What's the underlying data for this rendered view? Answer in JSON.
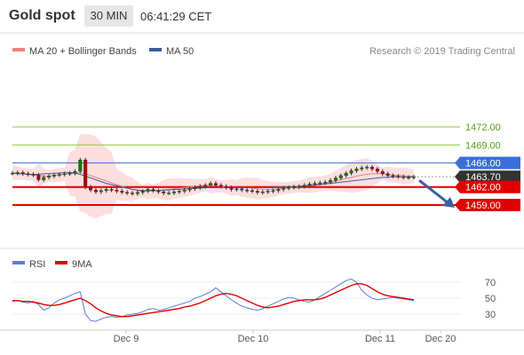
{
  "header": {
    "title": "Gold spot",
    "timeframe": "30 MIN",
    "time": "06:41:29 CET"
  },
  "colors": {
    "ma20": "#f08080",
    "bollinger_fill": "#fcd8d8",
    "ma50": "#3a5f9c",
    "green_level": "#8cc63f",
    "blue_level": "#3a6fd8",
    "red_level": "#e00000",
    "current_price_box": "#333333",
    "candle": "#008000",
    "rsi": "#5b7ed6",
    "rsi_ma": "#e00000"
  },
  "legend": {
    "ma20_label": "MA 20 + Bollinger Bands",
    "ma50_label": "MA 50",
    "rsi_label": "RSI",
    "rsi_ma_label": "9MA"
  },
  "watermark": "Research © 2019 Trading Central",
  "chart_data": [
    {
      "type": "candlestick",
      "title": "Gold spot",
      "x_ticks": [
        "Dec 9",
        "Dec 10",
        "Dec 11",
        "Dec 20"
      ],
      "price_levels": [
        {
          "value": "1472.00",
          "kind": "resistance",
          "color": "green"
        },
        {
          "value": "1469.00",
          "kind": "resistance",
          "color": "green"
        },
        {
          "value": "1466.00",
          "kind": "pivot",
          "color": "blue"
        },
        {
          "value": "1463.70",
          "kind": "current",
          "color": "dark"
        },
        {
          "value": "1462.00",
          "kind": "support",
          "color": "red"
        },
        {
          "value": "1459.00",
          "kind": "support",
          "color": "red"
        }
      ],
      "forecast": "down",
      "close_series": [
        1464.3,
        1464.4,
        1464.2,
        1464.1,
        1464.0,
        1463.2,
        1463.6,
        1463.8,
        1464.0,
        1464.1,
        1464.2,
        1464.3,
        1464.6,
        1466.5,
        1462.0,
        1461.5,
        1461.2,
        1461.4,
        1461.6,
        1461.5,
        1461.3,
        1461.1,
        1461.0,
        1460.9,
        1461.1,
        1461.3,
        1461.6,
        1461.4,
        1461.2,
        1461.0,
        1461.0,
        1461.2,
        1461.3,
        1461.5,
        1461.7,
        1461.9,
        1462.1,
        1462.3,
        1462.6,
        1462.3,
        1462.1,
        1461.9,
        1461.6,
        1461.7,
        1461.5,
        1461.4,
        1461.3,
        1461.1,
        1461.2,
        1461.3,
        1461.4,
        1461.6,
        1461.8,
        1461.9,
        1462.0,
        1462.1,
        1462.3,
        1462.5,
        1462.6,
        1462.7,
        1462.8,
        1463.1,
        1463.5,
        1463.9,
        1464.3,
        1464.7,
        1465.0,
        1465.2,
        1465.3,
        1465.0,
        1464.6,
        1464.2,
        1463.9,
        1463.8,
        1463.7,
        1463.6,
        1463.6,
        1463.7
      ],
      "ma20_series": [
        1464.4,
        1464.3,
        1464.2,
        1464.1,
        1464.0,
        1463.9,
        1463.8,
        1463.8,
        1463.9,
        1464.0,
        1464.1,
        1464.2,
        1464.3,
        1464.4,
        1464.2,
        1463.9,
        1463.6,
        1463.3,
        1463.0,
        1462.7,
        1462.4,
        1462.1,
        1461.8,
        1461.6,
        1461.4,
        1461.3,
        1461.3,
        1461.3,
        1461.4,
        1461.5,
        1461.6,
        1461.7,
        1461.8,
        1461.9,
        1462.0,
        1462.1,
        1462.2,
        1462.3,
        1462.3,
        1462.2,
        1462.1,
        1462.0,
        1461.9,
        1461.9,
        1461.9,
        1461.9,
        1461.8,
        1461.7,
        1461.6,
        1461.6,
        1461.6,
        1461.7,
        1461.8,
        1461.9,
        1462.0,
        1462.1,
        1462.2,
        1462.3,
        1462.4,
        1462.5,
        1462.6,
        1462.8,
        1463.0,
        1463.2,
        1463.4,
        1463.6,
        1463.8,
        1464.0,
        1464.1,
        1464.2,
        1464.2,
        1464.2,
        1464.1,
        1464.0,
        1463.9,
        1463.9,
        1463.8,
        1463.8
      ],
      "ma50_series": [
        1464.3,
        1464.2,
        1464.2,
        1464.1,
        1464.1,
        1464.1,
        1464.2,
        1464.2,
        1464.3,
        1464.3,
        1464.4,
        1464.4,
        1464.3,
        1464.1,
        1463.8,
        1463.5,
        1463.2,
        1462.9,
        1462.6,
        1462.4,
        1462.2,
        1462.0,
        1461.8,
        1461.6,
        1461.5,
        1461.4,
        1461.4,
        1461.4,
        1461.4,
        1461.5,
        1461.5,
        1461.6,
        1461.6,
        1461.7,
        1461.7,
        1461.8,
        1461.8,
        1461.9,
        1461.9,
        1461.9,
        1461.9,
        1461.9,
        1461.9,
        1461.9,
        1461.9,
        1461.9,
        1461.9,
        1461.9,
        1461.9,
        1461.9,
        1461.9,
        1462.0,
        1462.0,
        1462.0,
        1462.1,
        1462.1,
        1462.2,
        1462.2,
        1462.3,
        1462.4,
        1462.5,
        1462.6,
        1462.7,
        1462.8,
        1462.9,
        1463.0,
        1463.1,
        1463.2,
        1463.3,
        1463.4,
        1463.5,
        1463.6,
        1463.6,
        1463.7,
        1463.7,
        1463.7,
        1463.7,
        1463.7
      ]
    },
    {
      "type": "line",
      "title": "",
      "y_ticks": [
        30,
        50,
        70
      ],
      "series": [
        {
          "name": "RSI",
          "values": [
            46,
            47,
            45,
            44,
            46,
            42,
            35,
            38,
            44,
            48,
            50,
            53,
            56,
            58,
            30,
            22,
            21,
            24,
            26,
            27,
            26,
            27,
            29,
            30,
            31,
            33,
            36,
            37,
            35,
            36,
            38,
            40,
            42,
            44,
            46,
            50,
            52,
            55,
            58,
            63,
            58,
            53,
            48,
            44,
            40,
            38,
            36,
            35,
            37,
            40,
            43,
            46,
            49,
            51,
            50,
            48,
            46,
            45,
            48,
            52,
            56,
            60,
            64,
            68,
            72,
            74,
            70,
            60,
            54,
            50,
            48,
            49,
            50,
            51,
            50,
            49,
            48,
            47
          ]
        },
        {
          "name": "9MA",
          "values": [
            47,
            47,
            46,
            46,
            45,
            44,
            42,
            41,
            41,
            42,
            44,
            46,
            48,
            50,
            47,
            43,
            38,
            34,
            31,
            29,
            28,
            27,
            27,
            28,
            29,
            30,
            31,
            32,
            33,
            34,
            35,
            36,
            37,
            39,
            40,
            42,
            44,
            47,
            50,
            53,
            55,
            56,
            55,
            53,
            50,
            47,
            44,
            41,
            39,
            38,
            39,
            40,
            42,
            44,
            46,
            47,
            48,
            48,
            48,
            49,
            51,
            54,
            57,
            60,
            63,
            66,
            68,
            68,
            66,
            62,
            58,
            55,
            53,
            52,
            51,
            50,
            49,
            48
          ]
        }
      ]
    }
  ]
}
